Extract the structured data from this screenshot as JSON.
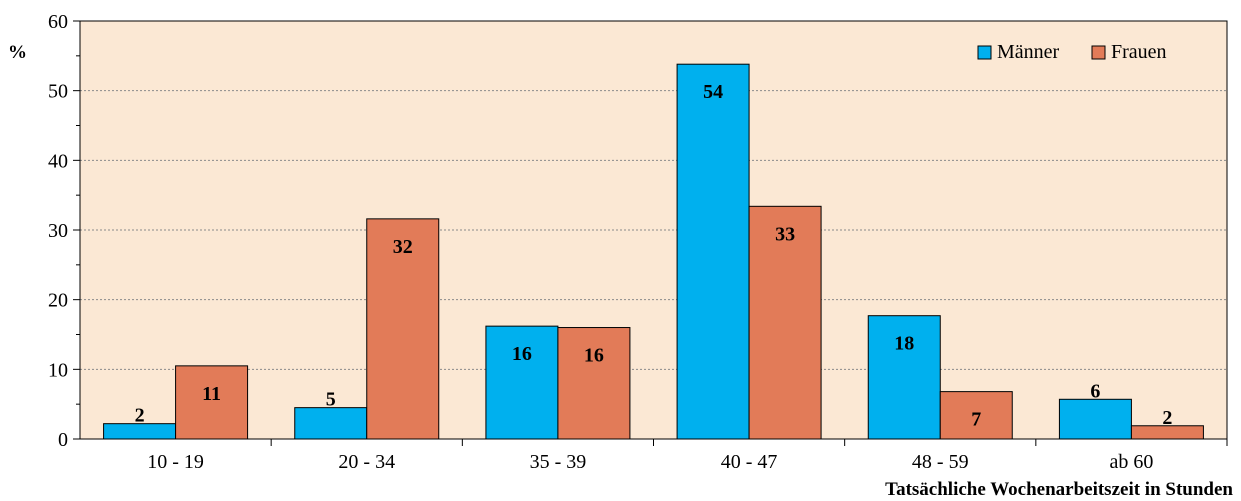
{
  "chart_data": {
    "type": "bar",
    "title": "",
    "ylabel": "%",
    "xlabel": "Tatsächliche Wochenarbeitszeit in Stunden",
    "categories": [
      "10 - 19",
      "20 - 34",
      "35 - 39",
      "40 - 47",
      "48 - 59",
      "ab 60"
    ],
    "ylim": [
      0,
      60
    ],
    "yticks": [
      0,
      10,
      20,
      30,
      40,
      50,
      60
    ],
    "grid": true,
    "legend_position": "top-right",
    "plot_background": "#FBE8D4",
    "series": [
      {
        "name": "Männer",
        "color": "#00B0EE",
        "values": [
          2.2,
          4.5,
          16.2,
          53.8,
          17.7,
          5.7
        ],
        "labels": [
          "2",
          "5",
          "16",
          "54",
          "18",
          "6"
        ]
      },
      {
        "name": "Frauen",
        "color": "#E27B58",
        "values": [
          10.5,
          31.6,
          16.0,
          33.4,
          6.8,
          1.9
        ],
        "labels": [
          "11",
          "32",
          "16",
          "33",
          "7",
          "2"
        ]
      }
    ]
  }
}
